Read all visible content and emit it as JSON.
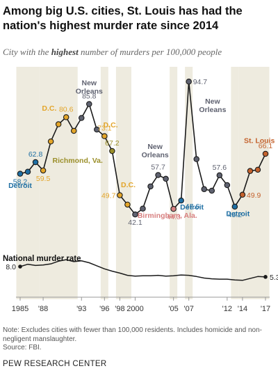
{
  "title": "Among big U.S. cities, St. Louis has had the nation's highest murder rate since 2014",
  "subtitle_pre": "City with the ",
  "subtitle_bold": "highest",
  "subtitle_post": " number of murders per 100,000 people",
  "national_label": "National murder rate",
  "note": "Note: Excludes cities with fewer than 100,000 residents. Includes homicide and non-negligent manslaughter.",
  "source": "Source: FBI.",
  "brand": "PEW RESEARCH CENTER",
  "colors": {
    "Detroit": "#1f6fa3",
    "D.C.": "#e3a52a",
    "Richmond, Va.": "#9b8f2a",
    "New Orleans": "#5f6270",
    "Birmingham, Ala.": "#d77f7f",
    "St. Louis": "#c4622d",
    "band": "#eeebdf"
  },
  "chart_data": {
    "type": "line",
    "x_ticks": [
      "1985",
      "'88",
      "'93",
      "'96",
      "'98",
      "2000",
      "'05",
      "'07",
      "'12",
      "'14",
      "'17"
    ],
    "x_tick_years": [
      1985,
      1988,
      1993,
      1996,
      1998,
      2000,
      2005,
      2007,
      2012,
      2014,
      2017
    ],
    "top": {
      "title": "City with the highest number of murders per 100,000 people",
      "ylim": [
        30,
        100
      ],
      "points": [
        {
          "year": 1985,
          "value": 58.2,
          "city": "Detroit"
        },
        {
          "year": 1986,
          "value": 59,
          "city": "Detroit"
        },
        {
          "year": 1987,
          "value": 62.8,
          "city": "Detroit"
        },
        {
          "year": 1988,
          "value": 59.5,
          "city": "D.C."
        },
        {
          "year": 1989,
          "value": 71,
          "city": "D.C."
        },
        {
          "year": 1990,
          "value": 77.8,
          "city": "D.C."
        },
        {
          "year": 1991,
          "value": 80.6,
          "city": "D.C."
        },
        {
          "year": 1992,
          "value": 75.2,
          "city": "D.C."
        },
        {
          "year": 1993,
          "value": 80.3,
          "city": "New Orleans"
        },
        {
          "year": 1994,
          "value": 85.8,
          "city": "New Orleans"
        },
        {
          "year": 1995,
          "value": 75.7,
          "city": "New Orleans"
        },
        {
          "year": 1996,
          "value": 73.1,
          "city": "D.C."
        },
        {
          "year": 1997,
          "value": 67.2,
          "city": "Richmond, Va."
        },
        {
          "year": 1998,
          "value": 49.7,
          "city": "D.C."
        },
        {
          "year": 1999,
          "value": 46,
          "city": "D.C."
        },
        {
          "year": 2000,
          "value": 42.1,
          "city": "New Orleans"
        },
        {
          "year": 2001,
          "value": 44.4,
          "city": "New Orleans"
        },
        {
          "year": 2002,
          "value": 53.2,
          "city": "New Orleans"
        },
        {
          "year": 2003,
          "value": 57.7,
          "city": "New Orleans"
        },
        {
          "year": 2004,
          "value": 56.2,
          "city": "New Orleans"
        },
        {
          "year": 2005,
          "value": 44.3,
          "city": "Birmingham, Ala."
        },
        {
          "year": 2006,
          "value": 47.6,
          "city": "Detroit"
        },
        {
          "year": 2007,
          "value": 94.7,
          "city": "New Orleans"
        },
        {
          "year": 2008,
          "value": 64,
          "city": "New Orleans"
        },
        {
          "year": 2009,
          "value": 52.1,
          "city": "New Orleans"
        },
        {
          "year": 2010,
          "value": 51.5,
          "city": "New Orleans"
        },
        {
          "year": 2011,
          "value": 57.6,
          "city": "New Orleans"
        },
        {
          "year": 2012,
          "value": 53.7,
          "city": "New Orleans"
        },
        {
          "year": 2013,
          "value": 45.2,
          "city": "Detroit"
        },
        {
          "year": 2014,
          "value": 49.9,
          "city": "St. Louis"
        },
        {
          "year": 2015,
          "value": 59.3,
          "city": "St. Louis"
        },
        {
          "year": 2016,
          "value": 59.8,
          "city": "St. Louis"
        },
        {
          "year": 2017,
          "value": 66.1,
          "city": "St. Louis"
        }
      ],
      "bands": [
        [
          1985,
          1987
        ],
        [
          1988,
          1992
        ],
        [
          1996,
          1996
        ],
        [
          1998,
          1999
        ],
        [
          2005,
          2005
        ],
        [
          2007,
          2007
        ],
        [
          2013,
          2013
        ],
        [
          2014,
          2017
        ]
      ],
      "value_labels": [
        {
          "year": 1985,
          "text": "58.2",
          "city": "Detroit",
          "pos": "below"
        },
        {
          "year": 1987,
          "text": "62.8",
          "city": "Detroit",
          "pos": "above"
        },
        {
          "year": 1988,
          "text": "59.5",
          "city": "D.C.",
          "pos": "below"
        },
        {
          "year": 1991,
          "text": "80.6",
          "city": "D.C.",
          "pos": "above"
        },
        {
          "year": 1994,
          "text": "85.8",
          "city": "New Orleans",
          "pos": "above"
        },
        {
          "year": 1996,
          "text": "73.1",
          "city": "D.C.",
          "pos": "above"
        },
        {
          "year": 1997,
          "text": "67.2",
          "city": "Richmond, Va.",
          "pos": "above"
        },
        {
          "year": 1998,
          "text": "49.7",
          "city": "D.C.",
          "pos": "left"
        },
        {
          "year": 2000,
          "text": "42.1",
          "city": "New Orleans",
          "pos": "below"
        },
        {
          "year": 2003,
          "text": "57.7",
          "city": "New Orleans",
          "pos": "above"
        },
        {
          "year": 2005,
          "text": "44.3",
          "city": "Birmingham, Ala.",
          "pos": "below"
        },
        {
          "year": 2006,
          "text": "47.6",
          "city": "Detroit",
          "pos": "below-right"
        },
        {
          "year": 2007,
          "text": "94.7",
          "city": "New Orleans",
          "pos": "right"
        },
        {
          "year": 2011,
          "text": "57.6",
          "city": "New Orleans",
          "pos": "above"
        },
        {
          "year": 2013,
          "text": "45.2",
          "city": "Detroit",
          "pos": "below"
        },
        {
          "year": 2014,
          "text": "49.9",
          "city": "St. Louis",
          "pos": "right"
        },
        {
          "year": 2017,
          "text": "66.1",
          "city": "St. Louis",
          "pos": "above"
        }
      ],
      "city_labels": [
        {
          "text": "Detroit",
          "city": "Detroit",
          "year": 1985,
          "value": 52.6
        },
        {
          "text": "D.C.",
          "city": "D.C.",
          "year": 1988.8,
          "value": 83.2
        },
        {
          "text": "New Orleans",
          "city": "New Orleans",
          "year": 1994,
          "value": 93.2
        },
        {
          "text": "D.C.",
          "city": "D.C.",
          "year": 1996.8,
          "value": 76.6
        },
        {
          "text": "Richmond, Va.",
          "city": "Richmond, Va.",
          "year": 1992.5,
          "value": 62.5
        },
        {
          "text": "D.C.",
          "city": "D.C.",
          "year": 1999.1,
          "value": 52.9
        },
        {
          "text": "New Orleans",
          "city": "New Orleans",
          "year": 2002.6,
          "value": 68
        },
        {
          "text": "Birmingham, Ala.",
          "city": "Birmingham, Ala.",
          "year": 2004.2,
          "value": 40.7
        },
        {
          "text": "Detroit",
          "city": "Detroit",
          "year": 2007.4,
          "value": 44.1
        },
        {
          "text": "New Orleans",
          "city": "New Orleans",
          "year": 2010.1,
          "value": 86
        },
        {
          "text": "Detroit",
          "city": "Detroit",
          "year": 2013.4,
          "value": 41.5
        },
        {
          "text": "St. Louis",
          "city": "St. Louis",
          "year": 2016.2,
          "value": 70.4
        }
      ]
    },
    "national": {
      "label": "National murder rate",
      "ylim": [
        0,
        10
      ],
      "start": {
        "year": 1985,
        "value": 8.0,
        "text": "8.0"
      },
      "end": {
        "year": 2017,
        "value": 5.3,
        "text": "5.3"
      },
      "points": [
        {
          "year": 1985,
          "value": 8.0
        },
        {
          "year": 1986,
          "value": 8.6
        },
        {
          "year": 1987,
          "value": 8.3
        },
        {
          "year": 1988,
          "value": 8.4
        },
        {
          "year": 1989,
          "value": 8.7
        },
        {
          "year": 1990,
          "value": 9.4
        },
        {
          "year": 1991,
          "value": 9.8
        },
        {
          "year": 1992,
          "value": 9.3
        },
        {
          "year": 1993,
          "value": 9.5
        },
        {
          "year": 1994,
          "value": 9.0
        },
        {
          "year": 1995,
          "value": 8.2
        },
        {
          "year": 1996,
          "value": 7.4
        },
        {
          "year": 1997,
          "value": 6.8
        },
        {
          "year": 1998,
          "value": 6.3
        },
        {
          "year": 1999,
          "value": 5.7
        },
        {
          "year": 2000,
          "value": 5.5
        },
        {
          "year": 2001,
          "value": 5.6
        },
        {
          "year": 2002,
          "value": 5.6
        },
        {
          "year": 2003,
          "value": 5.7
        },
        {
          "year": 2004,
          "value": 5.5
        },
        {
          "year": 2005,
          "value": 5.6
        },
        {
          "year": 2006,
          "value": 5.8
        },
        {
          "year": 2007,
          "value": 5.7
        },
        {
          "year": 2008,
          "value": 5.4
        },
        {
          "year": 2009,
          "value": 5.0
        },
        {
          "year": 2010,
          "value": 4.8
        },
        {
          "year": 2011,
          "value": 4.7
        },
        {
          "year": 2012,
          "value": 4.7
        },
        {
          "year": 2013,
          "value": 4.5
        },
        {
          "year": 2014,
          "value": 4.4
        },
        {
          "year": 2015,
          "value": 4.9
        },
        {
          "year": 2016,
          "value": 5.4
        },
        {
          "year": 2017,
          "value": 5.3
        }
      ]
    }
  }
}
